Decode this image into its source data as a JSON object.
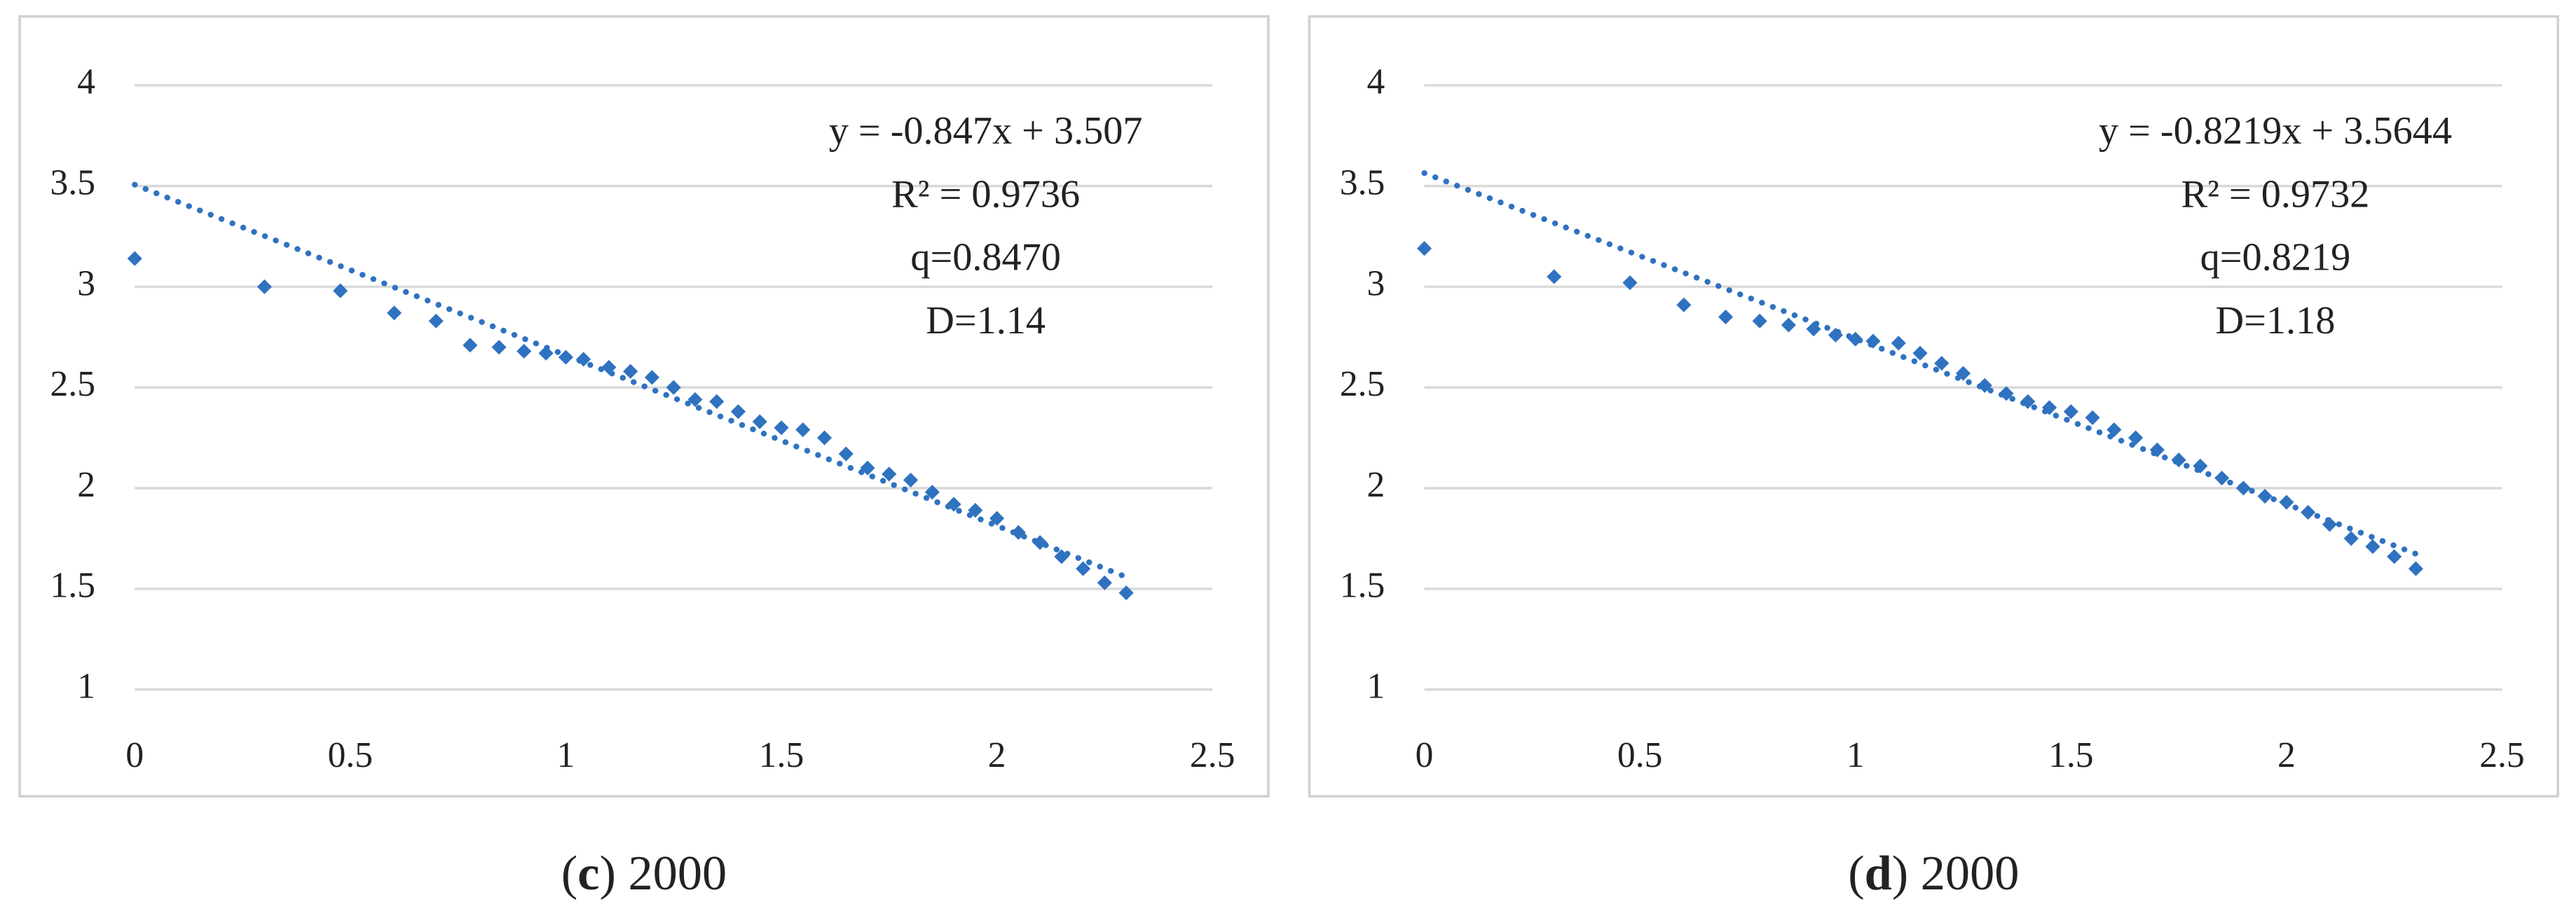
{
  "chart_data": [
    {
      "type": "scatter",
      "color": "#2f72c0",
      "x": [
        0,
        0.301,
        0.477,
        0.602,
        0.699,
        0.778,
        0.845,
        0.903,
        0.954,
        1.0,
        1.041,
        1.1,
        1.15,
        1.2,
        1.25,
        1.3,
        1.35,
        1.4,
        1.45,
        1.5,
        1.55,
        1.6,
        1.65,
        1.7,
        1.75,
        1.8,
        1.85,
        1.9,
        1.95,
        2.0,
        2.05,
        2.1,
        2.15,
        2.2,
        2.25,
        2.3
      ],
      "values": [
        3.14,
        3.0,
        2.98,
        2.87,
        2.83,
        2.71,
        2.7,
        2.68,
        2.67,
        2.65,
        2.64,
        2.6,
        2.58,
        2.55,
        2.5,
        2.44,
        2.43,
        2.38,
        2.33,
        2.3,
        2.29,
        2.25,
        2.17,
        2.1,
        2.07,
        2.04,
        1.98,
        1.92,
        1.89,
        1.85,
        1.78,
        1.73,
        1.66,
        1.6,
        1.53,
        1.48
      ],
      "trendline": {
        "slope": -0.847,
        "intercept": 3.507
      },
      "annotations": [
        "y = -0.847x + 3.507",
        "R² = 0.9736",
        "q=0.8470",
        "D=1.14"
      ],
      "caption": [
        "(",
        "c",
        ") 2000"
      ],
      "xlim": [
        0,
        2.5
      ],
      "ylim": [
        1,
        4
      ],
      "xticks": [
        0,
        0.5,
        1,
        1.5,
        2,
        2.5
      ],
      "yticks": [
        1,
        1.5,
        2,
        2.5,
        3,
        3.5,
        4
      ],
      "grid": true
    },
    {
      "type": "scatter",
      "color": "#2f72c0",
      "x": [
        0,
        0.301,
        0.477,
        0.602,
        0.699,
        0.778,
        0.845,
        0.903,
        0.954,
        1.0,
        1.041,
        1.1,
        1.15,
        1.2,
        1.25,
        1.3,
        1.35,
        1.4,
        1.45,
        1.5,
        1.55,
        1.6,
        1.65,
        1.7,
        1.75,
        1.8,
        1.85,
        1.9,
        1.95,
        2.0,
        2.05,
        2.1,
        2.15,
        2.2,
        2.25,
        2.3
      ],
      "values": [
        3.19,
        3.05,
        3.02,
        2.91,
        2.85,
        2.83,
        2.81,
        2.79,
        2.76,
        2.74,
        2.73,
        2.72,
        2.67,
        2.62,
        2.57,
        2.51,
        2.47,
        2.43,
        2.4,
        2.38,
        2.35,
        2.29,
        2.25,
        2.19,
        2.14,
        2.11,
        2.05,
        2.0,
        1.96,
        1.93,
        1.88,
        1.82,
        1.75,
        1.71,
        1.66,
        1.6
      ],
      "trendline": {
        "slope": -0.8219,
        "intercept": 3.5644
      },
      "annotations": [
        "y = -0.8219x + 3.5644",
        "R² = 0.9732",
        "q=0.8219",
        "D=1.18"
      ],
      "caption": [
        "(",
        "d",
        ") 2000"
      ],
      "xlim": [
        0,
        2.5
      ],
      "ylim": [
        1,
        4
      ],
      "xticks": [
        0,
        0.5,
        1,
        1.5,
        2,
        2.5
      ],
      "yticks": [
        1,
        1.5,
        2,
        2.5,
        3,
        3.5,
        4
      ],
      "grid": true
    }
  ]
}
